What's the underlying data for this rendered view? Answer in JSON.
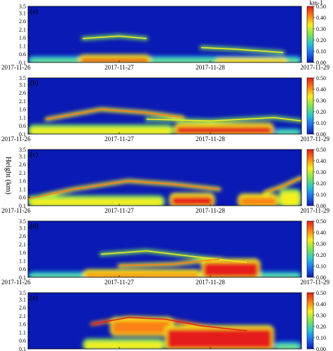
{
  "figure": {
    "ylabel": "Height (km)",
    "colorbar_unit": "km-1"
  },
  "chart_data": {
    "type": "heatmap",
    "x_ticks": [
      "2017-11-26",
      "2017-11-27",
      "2017-11-28",
      "2017-11-29"
    ],
    "xlim": [
      "2017-11-26",
      "2017-11-29"
    ],
    "y_ticks": [
      0.1,
      0.6,
      1.1,
      1.6,
      2.1,
      2.6,
      3.1,
      3.5
    ],
    "ylim": [
      0.1,
      3.5
    ],
    "ylabel": "Height (km)",
    "colorbar": {
      "ticks": [
        0.0,
        0.1,
        0.2,
        0.3,
        0.4,
        0.5
      ],
      "range": [
        0.0,
        0.5
      ],
      "unit": "km-1",
      "colors": [
        "#0a1ab4",
        "#1e6ef0",
        "#28c8d2",
        "#7ee650",
        "#f5f01e",
        "#fa8214",
        "#e61e1e"
      ]
    },
    "panels": [
      {
        "label": "(a)",
        "hot_layers": [
          {
            "t0": 0.55,
            "t1": 1.35,
            "h0": 0.1,
            "h1": 0.45,
            "v": 0.5
          },
          {
            "t0": 2.05,
            "t1": 2.85,
            "h0": 0.1,
            "h1": 0.25,
            "v": 0.45
          },
          {
            "t0": 0.0,
            "t1": 3.0,
            "h0": 0.1,
            "h1": 0.35,
            "v": 0.22
          }
        ],
        "aerosol_lines": [
          {
            "t": [
              0.6,
              1.0,
              1.3
            ],
            "h": [
              1.55,
              1.7,
              1.55
            ],
            "v": 0.25
          },
          {
            "t": [
              1.9,
              2.3,
              2.8
            ],
            "h": [
              1.0,
              0.9,
              0.7
            ],
            "v": 0.22
          }
        ]
      },
      {
        "label": "(b)",
        "hot_layers": [
          {
            "t0": 1.6,
            "t1": 2.7,
            "h0": 0.1,
            "h1": 0.65,
            "v": 0.5
          },
          {
            "t0": 0.0,
            "t1": 1.6,
            "h0": 0.1,
            "h1": 0.55,
            "v": 0.3
          },
          {
            "t0": 2.7,
            "t1": 3.0,
            "h0": 0.1,
            "h1": 0.3,
            "v": 0.25
          }
        ],
        "aerosol_lines": [
          {
            "t": [
              0.2,
              0.8,
              1.3,
              1.7
            ],
            "h": [
              1.0,
              1.6,
              1.4,
              1.1
            ],
            "v": 0.35
          },
          {
            "t": [
              1.3,
              2.0,
              2.7,
              3.0
            ],
            "h": [
              1.0,
              0.9,
              1.1,
              0.9
            ],
            "v": 0.22
          }
        ]
      },
      {
        "label": "(c)",
        "hot_layers": [
          {
            "t0": 1.55,
            "t1": 2.05,
            "h0": 0.1,
            "h1": 0.75,
            "v": 0.5
          },
          {
            "t0": 2.3,
            "t1": 2.75,
            "h0": 0.1,
            "h1": 0.7,
            "v": 0.45
          },
          {
            "t0": 0.0,
            "t1": 1.5,
            "h0": 0.1,
            "h1": 0.6,
            "v": 0.32
          },
          {
            "t0": 2.75,
            "t1": 3.0,
            "h0": 0.1,
            "h1": 1.0,
            "v": 0.3
          }
        ],
        "aerosol_lines": [
          {
            "t": [
              0.0,
              0.5,
              1.1,
              1.6,
              2.1
            ],
            "h": [
              0.5,
              1.1,
              1.6,
              1.4,
              1.1
            ],
            "v": 0.35
          },
          {
            "t": [
              2.6,
              2.8,
              3.0
            ],
            "h": [
              0.9,
              1.3,
              1.8
            ],
            "v": 0.32
          }
        ]
      },
      {
        "label": "(d)",
        "hot_layers": [
          {
            "t0": 1.9,
            "t1": 2.55,
            "h0": 0.1,
            "h1": 1.1,
            "v": 0.5
          },
          {
            "t0": 0.6,
            "t1": 1.9,
            "h0": 0.1,
            "h1": 0.45,
            "v": 0.45
          },
          {
            "t0": 0.0,
            "t1": 3.0,
            "h0": 0.1,
            "h1": 0.3,
            "v": 0.28
          }
        ],
        "aerosol_lines": [
          {
            "t": [
              0.8,
              1.3,
              1.9,
              2.4
            ],
            "h": [
              1.5,
              1.7,
              1.3,
              1.0
            ],
            "v": 0.25
          },
          {
            "t": [
              1.0,
              1.6,
              2.1
            ],
            "h": [
              0.8,
              0.9,
              1.2
            ],
            "v": 0.3
          }
        ]
      },
      {
        "label": "(e)",
        "hot_layers": [
          {
            "t0": 1.5,
            "t1": 2.7,
            "h0": 0.1,
            "h1": 1.4,
            "v": 0.5
          },
          {
            "t0": 0.9,
            "t1": 1.6,
            "h0": 1.0,
            "h1": 1.9,
            "v": 0.42
          },
          {
            "t0": 0.6,
            "t1": 1.5,
            "h0": 0.1,
            "h1": 0.6,
            "v": 0.35
          },
          {
            "t0": 2.7,
            "t1": 3.0,
            "h0": 0.1,
            "h1": 0.4,
            "v": 0.22
          }
        ],
        "aerosol_lines": [
          {
            "t": [
              0.7,
              1.1,
              1.5,
              1.9,
              2.4
            ],
            "h": [
              1.6,
              2.0,
              1.9,
              1.5,
              1.2
            ],
            "v": 0.45
          }
        ]
      }
    ]
  }
}
